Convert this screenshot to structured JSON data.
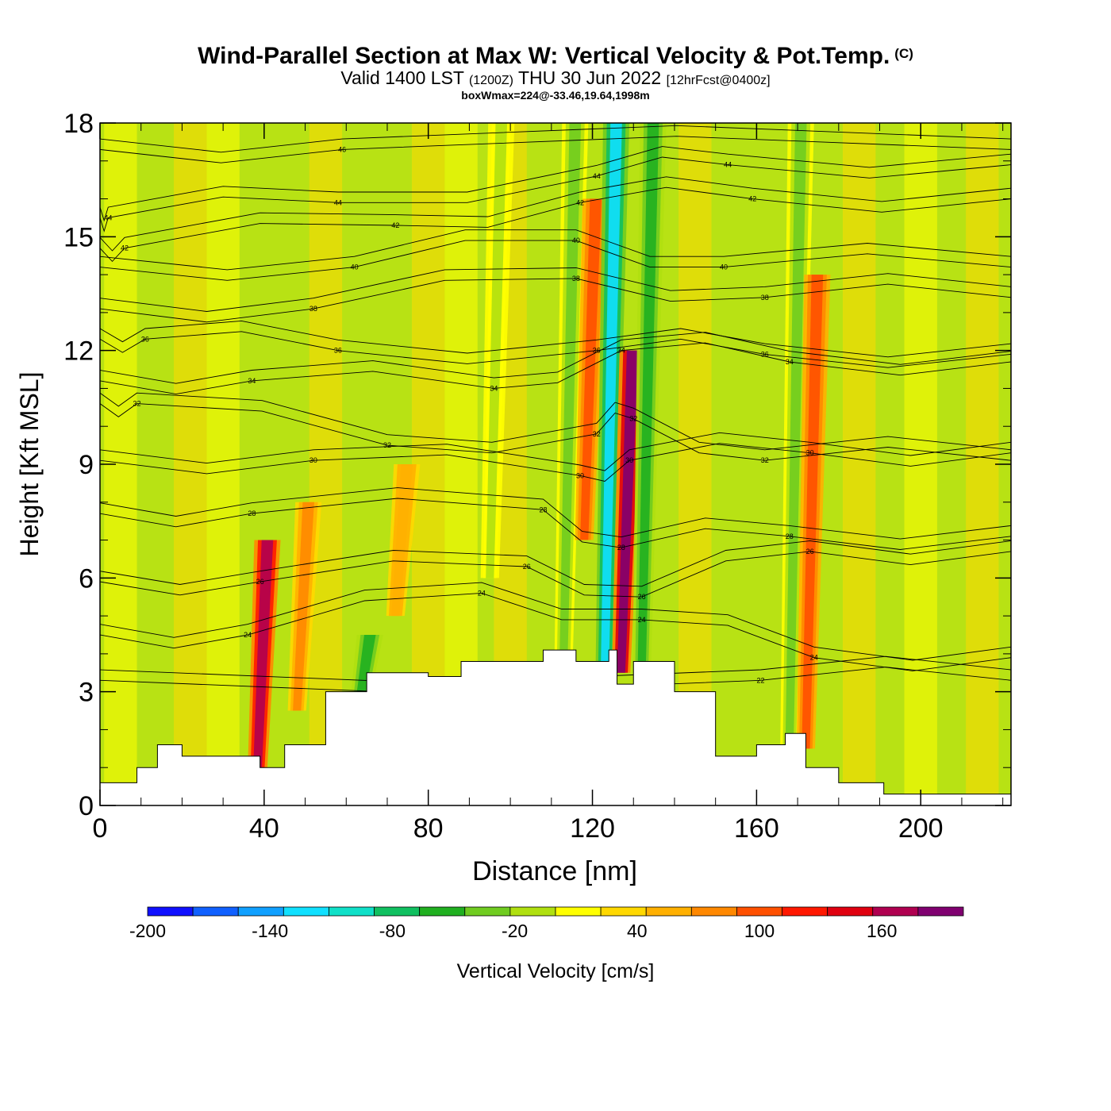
{
  "title": {
    "main": "Wind-Parallel Section at Max W: Vertical Velocity & Pot.Temp.",
    "copyright": "(C)",
    "valid_prefix": "Valid 1400 LST",
    "valid_utc": "(1200Z)",
    "valid_date": "THU 30 Jun 2022",
    "forecast": "[12hrFcst@0400z]",
    "note": "boxWmax=224@-33.46,19.64,1998m"
  },
  "chart_data": {
    "type": "heatmap",
    "xlabel": "Distance [nm]",
    "ylabel": "Height [Kft MSL]",
    "xlim": [
      0,
      222
    ],
    "ylim": [
      0,
      18
    ],
    "x_ticks": [
      0,
      40,
      80,
      120,
      160,
      200
    ],
    "y_ticks": [
      0,
      3,
      6,
      9,
      12,
      15,
      18
    ],
    "colorbar": {
      "label": "Vertical Velocity [cm/s]",
      "range": [
        -200,
        200
      ],
      "step": 20,
      "tick_labels": [
        -200,
        -140,
        -80,
        -20,
        40,
        100,
        160
      ],
      "colors": [
        "#1010ff",
        "#1060ff",
        "#10a0ff",
        "#10e0ff",
        "#10e0c8",
        "#10c060",
        "#20b020",
        "#70cc20",
        "#b0e010",
        "#ffff00",
        "#ffd800",
        "#ffb000",
        "#ff8800",
        "#ff5000",
        "#ff1800",
        "#e00010",
        "#b00050",
        "#800070"
      ]
    },
    "velocity_bands": [
      {
        "x": 38,
        "w": 120,
        "top": 0,
        "bottom": 7
      },
      {
        "x": 63,
        "w": -70,
        "top": 2.5,
        "bottom": 4.5
      },
      {
        "x": 48,
        "w": 45,
        "top": 2.5,
        "bottom": 8
      },
      {
        "x": 72,
        "w": 30,
        "top": 5,
        "bottom": 9
      },
      {
        "x": 113,
        "w": -60,
        "top": 4,
        "bottom": 18
      },
      {
        "x": 118,
        "w": 60,
        "top": 7,
        "bottom": 16
      },
      {
        "x": 123,
        "w": -140,
        "top": 3.5,
        "bottom": 18
      },
      {
        "x": 127,
        "w": 160,
        "top": 3.5,
        "bottom": 12
      },
      {
        "x": 132,
        "w": -70,
        "top": 3.5,
        "bottom": 18
      },
      {
        "x": 168,
        "w": -60,
        "top": 1.5,
        "bottom": 18
      },
      {
        "x": 172,
        "w": 60,
        "top": 1.5,
        "bottom": 14
      },
      {
        "x": 95,
        "w": -25,
        "top": 6,
        "bottom": 18
      }
    ],
    "terrain_kft": [
      {
        "x": 0,
        "z": 0.6
      },
      {
        "x": 9,
        "z": 1.0
      },
      {
        "x": 14,
        "z": 1.6
      },
      {
        "x": 20,
        "z": 1.3
      },
      {
        "x": 39,
        "z": 1.0
      },
      {
        "x": 45,
        "z": 1.6
      },
      {
        "x": 55,
        "z": 3.0
      },
      {
        "x": 65,
        "z": 3.5
      },
      {
        "x": 80,
        "z": 3.4
      },
      {
        "x": 88,
        "z": 3.8
      },
      {
        "x": 104,
        "z": 3.8
      },
      {
        "x": 108,
        "z": 4.1
      },
      {
        "x": 116,
        "z": 3.8
      },
      {
        "x": 124,
        "z": 4.1
      },
      {
        "x": 126,
        "z": 3.2
      },
      {
        "x": 130,
        "z": 3.8
      },
      {
        "x": 140,
        "z": 3.0
      },
      {
        "x": 150,
        "z": 1.3
      },
      {
        "x": 160,
        "z": 1.6
      },
      {
        "x": 167,
        "z": 1.9
      },
      {
        "x": 172,
        "z": 1.0
      },
      {
        "x": 180,
        "z": 0.6
      },
      {
        "x": 191,
        "z": 0.3
      },
      {
        "x": 222,
        "z": 0.3
      }
    ],
    "theta_contours": [
      {
        "label": "22",
        "x": 161,
        "y": 3.3
      },
      {
        "label": "24",
        "x": 36,
        "y": 4.5
      },
      {
        "label": "24",
        "x": 93,
        "y": 5.6
      },
      {
        "label": "24",
        "x": 132,
        "y": 4.9
      },
      {
        "label": "24",
        "x": 174,
        "y": 3.9
      },
      {
        "label": "26",
        "x": 39,
        "y": 5.9
      },
      {
        "label": "26",
        "x": 104,
        "y": 6.3
      },
      {
        "label": "26",
        "x": 132,
        "y": 5.5
      },
      {
        "label": "26",
        "x": 173,
        "y": 6.7
      },
      {
        "label": "28",
        "x": 37,
        "y": 7.7
      },
      {
        "label": "28",
        "x": 108,
        "y": 7.8
      },
      {
        "label": "28",
        "x": 127,
        "y": 6.8
      },
      {
        "label": "28",
        "x": 168,
        "y": 7.1
      },
      {
        "label": "30",
        "x": 52,
        "y": 9.1
      },
      {
        "label": "30",
        "x": 117,
        "y": 8.7
      },
      {
        "label": "30",
        "x": 129,
        "y": 9.1
      },
      {
        "label": "30",
        "x": 173,
        "y": 9.3
      },
      {
        "label": "32",
        "x": 9,
        "y": 10.6
      },
      {
        "label": "32",
        "x": 70,
        "y": 9.5
      },
      {
        "label": "32",
        "x": 121,
        "y": 9.8
      },
      {
        "label": "32",
        "x": 130,
        "y": 10.2
      },
      {
        "label": "32",
        "x": 162,
        "y": 9.1
      },
      {
        "label": "34",
        "x": 37,
        "y": 11.2
      },
      {
        "label": "34",
        "x": 96,
        "y": 11.0
      },
      {
        "label": "34",
        "x": 127,
        "y": 12.0
      },
      {
        "label": "34",
        "x": 168,
        "y": 11.7
      },
      {
        "label": "36",
        "x": 11,
        "y": 12.3
      },
      {
        "label": "36",
        "x": 58,
        "y": 12.0
      },
      {
        "label": "36",
        "x": 121,
        "y": 12.0
      },
      {
        "label": "36",
        "x": 162,
        "y": 11.9
      },
      {
        "label": "38",
        "x": 52,
        "y": 13.1
      },
      {
        "label": "38",
        "x": 116,
        "y": 13.9
      },
      {
        "label": "38",
        "x": 162,
        "y": 13.4
      },
      {
        "label": "40",
        "x": 62,
        "y": 14.2
      },
      {
        "label": "40",
        "x": 116,
        "y": 14.9
      },
      {
        "label": "40",
        "x": 152,
        "y": 14.2
      },
      {
        "label": "42",
        "x": 6,
        "y": 14.7
      },
      {
        "label": "42",
        "x": 72,
        "y": 15.3
      },
      {
        "label": "42",
        "x": 117,
        "y": 15.9
      },
      {
        "label": "42",
        "x": 159,
        "y": 16.0
      },
      {
        "label": "44",
        "x": 2,
        "y": 15.5
      },
      {
        "label": "44",
        "x": 58,
        "y": 15.9
      },
      {
        "label": "44",
        "x": 121,
        "y": 16.6
      },
      {
        "label": "44",
        "x": 153,
        "y": 16.9
      },
      {
        "label": "46",
        "x": 59,
        "y": 17.3
      }
    ]
  }
}
